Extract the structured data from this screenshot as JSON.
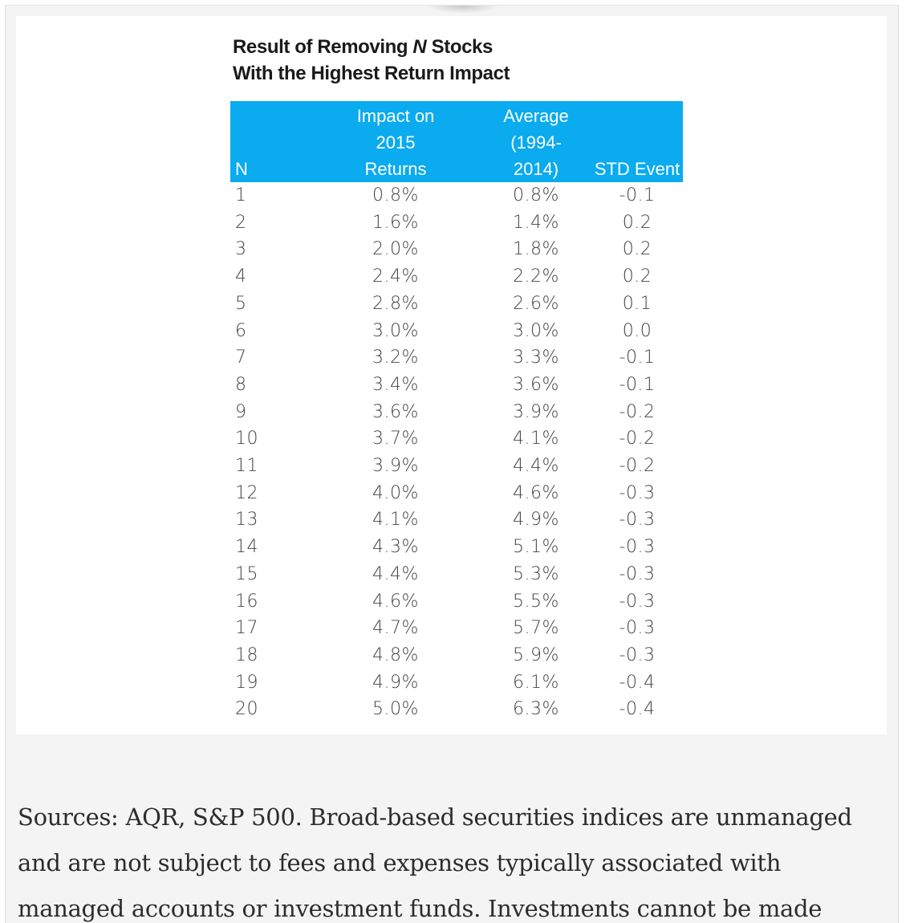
{
  "table": {
    "title_line1": "Result of Removing N Stocks",
    "title_line1_prefix": "Result of Removing ",
    "title_line1_italic": "N",
    "title_line1_suffix": " Stocks",
    "title_line2": "With the Highest Return Impact",
    "header_color": "#0aabef",
    "columns": [
      {
        "line1": "",
        "line2": "",
        "line3": "N"
      },
      {
        "line1": "Impact on",
        "line2": "2015",
        "line3": "Returns"
      },
      {
        "line1": "Average",
        "line2": "(1994-",
        "line3": "2014)"
      },
      {
        "line1": "",
        "line2": "",
        "line3": "STD Event"
      }
    ],
    "rows": [
      {
        "n": "1",
        "impact": "0.8%",
        "avg": "0.8%",
        "std": "-0.1"
      },
      {
        "n": "2",
        "impact": "1.6%",
        "avg": "1.4%",
        "std": "0.2"
      },
      {
        "n": "3",
        "impact": "2.0%",
        "avg": "1.8%",
        "std": "0.2"
      },
      {
        "n": "4",
        "impact": "2.4%",
        "avg": "2.2%",
        "std": "0.2"
      },
      {
        "n": "5",
        "impact": "2.8%",
        "avg": "2.6%",
        "std": "0.1"
      },
      {
        "n": "6",
        "impact": "3.0%",
        "avg": "3.0%",
        "std": "0.0"
      },
      {
        "n": "7",
        "impact": "3.2%",
        "avg": "3.3%",
        "std": "-0.1"
      },
      {
        "n": "8",
        "impact": "3.4%",
        "avg": "3.6%",
        "std": "-0.1"
      },
      {
        "n": "9",
        "impact": "3.6%",
        "avg": "3.9%",
        "std": "-0.2"
      },
      {
        "n": "10",
        "impact": "3.7%",
        "avg": "4.1%",
        "std": "-0.2"
      },
      {
        "n": "11",
        "impact": "3.9%",
        "avg": "4.4%",
        "std": "-0.2"
      },
      {
        "n": "12",
        "impact": "4.0%",
        "avg": "4.6%",
        "std": "-0.3"
      },
      {
        "n": "13",
        "impact": "4.1%",
        "avg": "4.9%",
        "std": "-0.3"
      },
      {
        "n": "14",
        "impact": "4.3%",
        "avg": "5.1%",
        "std": "-0.3"
      },
      {
        "n": "15",
        "impact": "4.4%",
        "avg": "5.3%",
        "std": "-0.3"
      },
      {
        "n": "16",
        "impact": "4.6%",
        "avg": "5.5%",
        "std": "-0.3"
      },
      {
        "n": "17",
        "impact": "4.7%",
        "avg": "5.7%",
        "std": "-0.3"
      },
      {
        "n": "18",
        "impact": "4.8%",
        "avg": "5.9%",
        "std": "-0.3"
      },
      {
        "n": "19",
        "impact": "4.9%",
        "avg": "6.1%",
        "std": "-0.4"
      },
      {
        "n": "20",
        "impact": "5.0%",
        "avg": "6.3%",
        "std": "-0.4"
      }
    ]
  },
  "caption": {
    "lines": [
      "Sources: AQR, S&P 500. Broad-based securities indices are unmanaged",
      "and are not subject to fees and expenses typically associated with",
      "managed accounts or investment funds. Investments cannot be made"
    ]
  }
}
